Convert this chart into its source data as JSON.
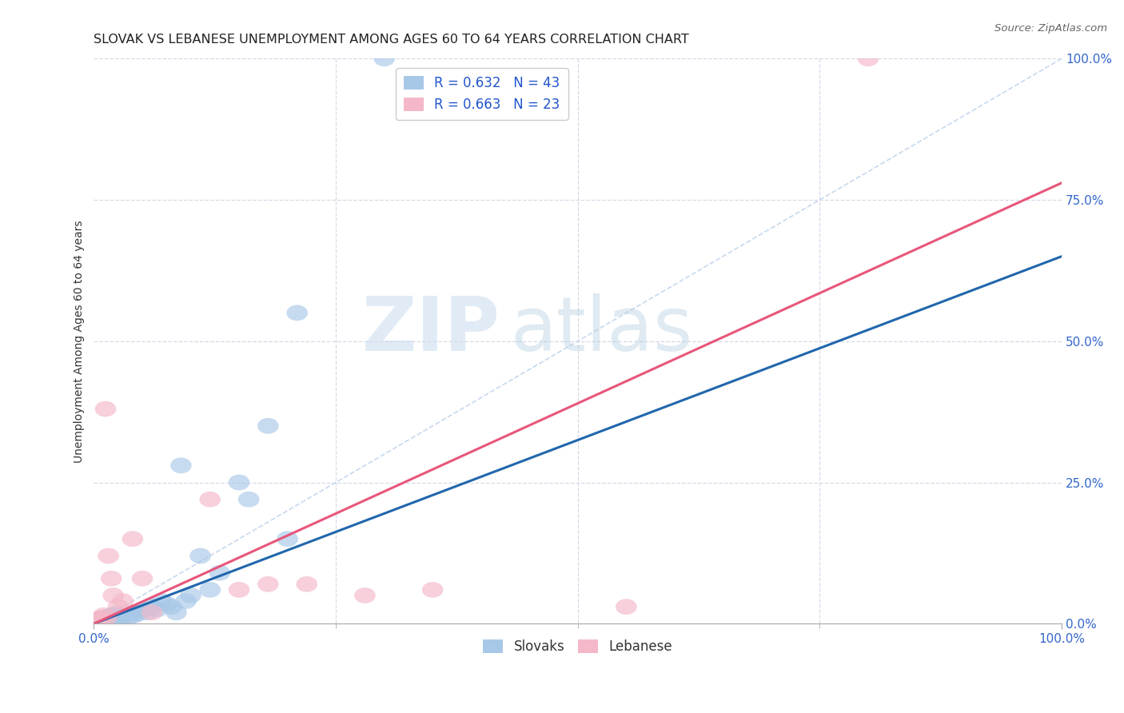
{
  "title": "SLOVAK VS LEBANESE UNEMPLOYMENT AMONG AGES 60 TO 64 YEARS CORRELATION CHART",
  "source": "Source: ZipAtlas.com",
  "ylabel": "Unemployment Among Ages 60 to 64 years",
  "xlim": [
    0,
    1
  ],
  "ylim": [
    0,
    1
  ],
  "xtick_positions": [
    0.0,
    1.0
  ],
  "xticklabels": [
    "0.0%",
    "100.0%"
  ],
  "ytick_positions": [
    0.0,
    0.25,
    0.5,
    0.75,
    1.0
  ],
  "yticklabels": [
    "0.0%",
    "25.0%",
    "50.0%",
    "75.0%",
    "100.0%"
  ],
  "grid_yticks": [
    0.25,
    0.5,
    0.75,
    1.0
  ],
  "grid_xticks": [
    0.25,
    0.5,
    0.75
  ],
  "slovak_color": "#a8c8e8",
  "lebanese_color": "#f4b8c8",
  "slovak_line_color": "#2166ac",
  "lebanese_line_color": "#e8567a",
  "diagonal_color": "#c8d8ee",
  "r_slovak": 0.632,
  "n_slovak": 43,
  "r_lebanese": 0.663,
  "n_lebanese": 23,
  "watermark_zip": "ZIP",
  "watermark_atlas": "atlas",
  "background_color": "#ffffff",
  "grid_color": "#d8d8e8",
  "slovak_scatter_x": [
    0.005,
    0.008,
    0.01,
    0.012,
    0.015,
    0.018,
    0.02,
    0.022,
    0.025,
    0.028,
    0.03,
    0.032,
    0.035,
    0.04,
    0.042,
    0.045,
    0.05,
    0.055,
    0.06,
    0.065,
    0.07,
    0.075,
    0.08,
    0.085,
    0.09,
    0.095,
    0.1,
    0.11,
    0.12,
    0.13,
    0.15,
    0.16,
    0.18,
    0.2,
    0.21,
    0.003,
    0.006,
    0.009,
    0.013,
    0.016,
    0.019,
    0.023,
    0.3
  ],
  "slovak_scatter_y": [
    0.005,
    0.008,
    0.01,
    0.005,
    0.012,
    0.008,
    0.015,
    0.01,
    0.008,
    0.006,
    0.012,
    0.015,
    0.01,
    0.02,
    0.015,
    0.018,
    0.025,
    0.02,
    0.03,
    0.025,
    0.04,
    0.035,
    0.03,
    0.02,
    0.28,
    0.04,
    0.05,
    0.12,
    0.06,
    0.09,
    0.25,
    0.22,
    0.35,
    0.15,
    0.55,
    0.003,
    0.006,
    0.008,
    0.01,
    0.012,
    0.015,
    0.018,
    1.0
  ],
  "lebanese_scatter_x": [
    0.003,
    0.005,
    0.007,
    0.01,
    0.012,
    0.015,
    0.018,
    0.02,
    0.025,
    0.03,
    0.04,
    0.05,
    0.12,
    0.15,
    0.18,
    0.22,
    0.28,
    0.35,
    0.55,
    0.008,
    0.013,
    0.8,
    0.06
  ],
  "lebanese_scatter_y": [
    0.005,
    0.008,
    0.01,
    0.015,
    0.38,
    0.12,
    0.08,
    0.05,
    0.03,
    0.04,
    0.15,
    0.08,
    0.22,
    0.06,
    0.07,
    0.07,
    0.05,
    0.06,
    0.03,
    0.01,
    0.01,
    1.0,
    0.02
  ],
  "slovak_line_x": [
    0.0,
    1.0
  ],
  "slovak_line_y": [
    0.0,
    0.65
  ],
  "lebanese_line_x": [
    0.0,
    1.0
  ],
  "lebanese_line_y": [
    0.0,
    0.78
  ],
  "title_fontsize": 11.5,
  "axis_label_fontsize": 10,
  "tick_fontsize": 11,
  "legend_fontsize": 12,
  "source_fontsize": 9.5
}
